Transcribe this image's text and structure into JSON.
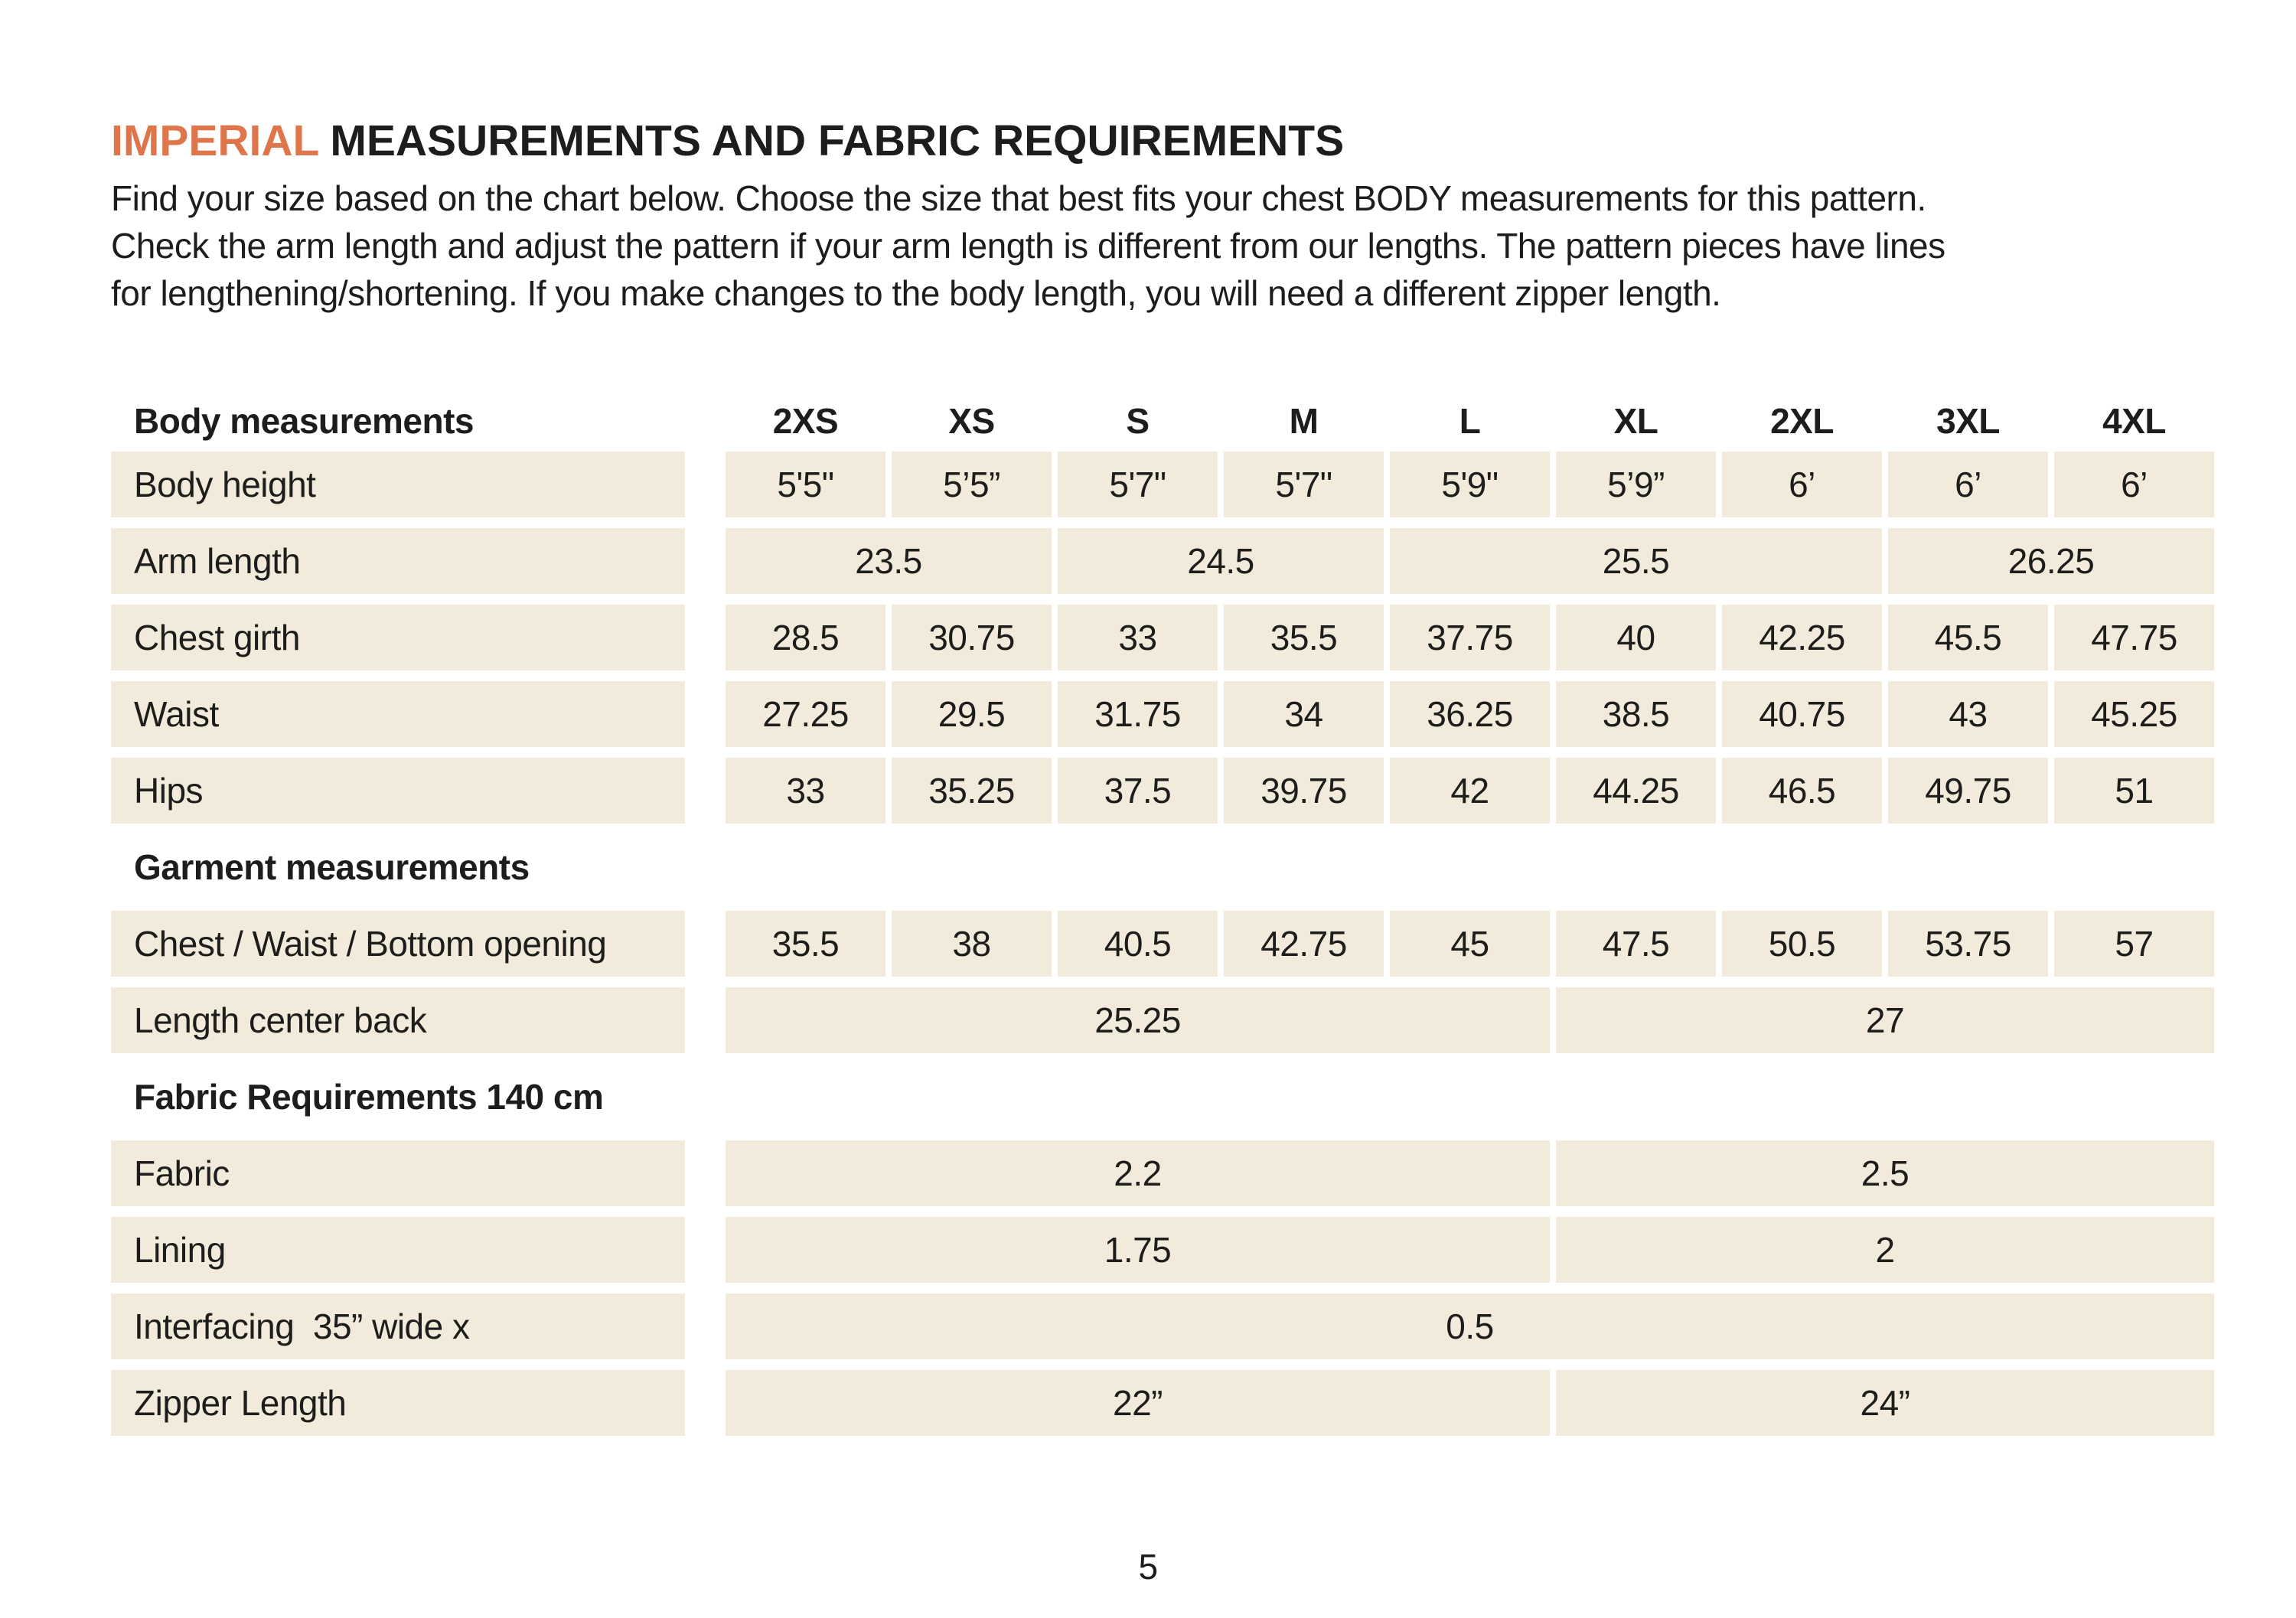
{
  "meta": {
    "accent_orange": "#DF764B",
    "cell_beige": "#F2EBDB",
    "text_color": "#1D1D1B"
  },
  "header": {
    "title_highlight": "IMPERIAL",
    "title_rest": "MEASUREMENTS AND FABRIC REQUIREMENTS",
    "intro_lines": [
      "Find your size based on the chart below. Choose the size that best fits your chest BODY measurements for this pattern.",
      "Check the arm length and adjust the pattern if your arm length is different from our lengths. The pattern pieces have lines",
      "for lengthening/shortening. If you make changes to the body length, you will need a different zipper length."
    ]
  },
  "table": {
    "size_header": {
      "label": "Body measurements",
      "sizes": [
        "2XS",
        "XS",
        "S",
        "M",
        "L",
        "XL",
        "2XL",
        "3XL",
        "4XL"
      ]
    },
    "rows": {
      "body_height": {
        "label": "Body height",
        "values": [
          "5'5\"",
          "5’5”",
          "5'7\"",
          "5'7\"",
          "5'9\"",
          "5’9”",
          "6’",
          "6’",
          "6’"
        ]
      },
      "arm_length": {
        "label": "Arm length",
        "values": [
          "23.5",
          "24.5",
          "25.5",
          "26.25"
        ]
      },
      "chest_girth": {
        "label": "Chest girth",
        "values": [
          "28.5",
          "30.75",
          "33",
          "35.5",
          "37.75",
          "40",
          "42.25",
          "45.5",
          "47.75"
        ]
      },
      "waist": {
        "label": "Waist",
        "values": [
          "27.25",
          "29.5",
          "31.75",
          "34",
          "36.25",
          "38.5",
          "40.75",
          "43",
          "45.25"
        ]
      },
      "hips": {
        "label": "Hips",
        "values": [
          "33",
          "35.25",
          "37.5",
          "39.75",
          "42",
          "44.25",
          "46.5",
          "49.75",
          "51"
        ]
      },
      "garment_section_title": "Garment measurements",
      "chest_waist_bottom": {
        "label": "Chest / Waist / Bottom opening",
        "values": [
          "35.5",
          "38",
          "40.5",
          "42.75",
          "45",
          "47.5",
          "50.5",
          "53.75",
          "57"
        ]
      },
      "length_center_back": {
        "label": "Length center back",
        "values": [
          "25.25",
          "27"
        ]
      },
      "fabric_section_title": "Fabric Requirements 140 cm",
      "fabric": {
        "label": "Fabric",
        "values": [
          "2.2",
          "2.5"
        ]
      },
      "lining": {
        "label": "Lining",
        "values": [
          "1.75",
          "2"
        ]
      },
      "interfacing": {
        "label": "Interfacing  35” wide x",
        "values": [
          "0.5"
        ]
      },
      "zipper": {
        "label": "Zipper Length",
        "values": [
          "22”",
          "24”"
        ]
      }
    }
  },
  "footer": {
    "page_number": "5"
  }
}
